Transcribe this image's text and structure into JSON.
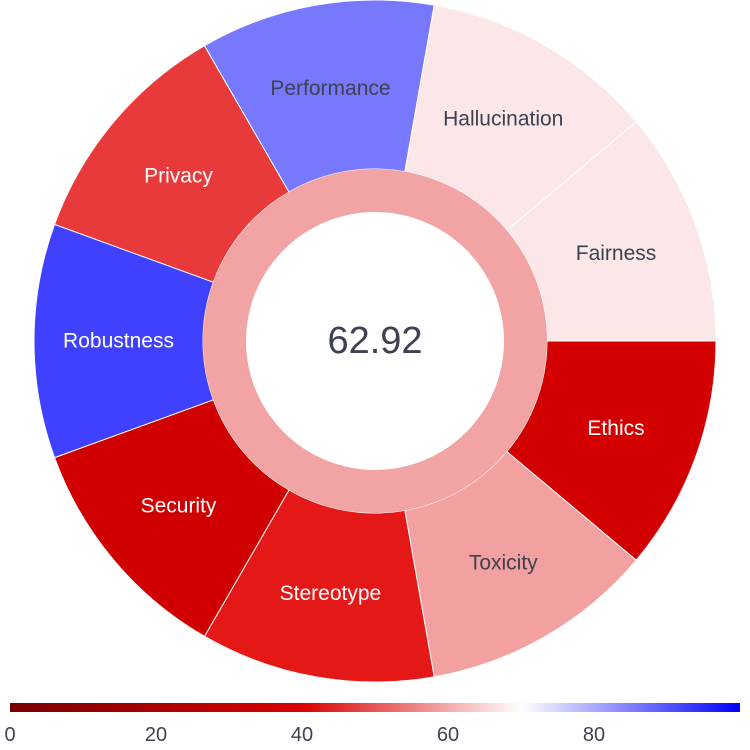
{
  "chart_data": {
    "type": "pie",
    "center_value": "62.92",
    "segments": [
      {
        "label": "Ethics",
        "value": 36,
        "color": "#d20000",
        "text_color": "#ffffff"
      },
      {
        "label": "Toxicity",
        "value": 63,
        "color": "#f2a0a0",
        "text_color": "#3d4152"
      },
      {
        "label": "Stereotype",
        "value": 42,
        "color": "#e51818",
        "text_color": "#ffffff"
      },
      {
        "label": "Security",
        "value": 35,
        "color": "#d00000",
        "text_color": "#ffffff"
      },
      {
        "label": "Robustness",
        "value": 96,
        "color": "#4040ff",
        "text_color": "#ffffff"
      },
      {
        "label": "Privacy",
        "value": 47,
        "color": "#e83a3a",
        "text_color": "#ffffff"
      },
      {
        "label": "Performance",
        "value": 88,
        "color": "#7878ff",
        "text_color": "#3d4152"
      },
      {
        "label": "Hallucination",
        "value": 70,
        "color": "#fbe7e7",
        "text_color": "#3d4152"
      },
      {
        "label": "Fairness",
        "value": 70,
        "color": "#fbe7e7",
        "text_color": "#3d4152"
      }
    ],
    "inner_ring_color": "#f2a3a3",
    "colorbar": {
      "range": [
        0,
        100
      ],
      "ticks": [
        "0",
        "20",
        "40",
        "60",
        "80"
      ],
      "stops": [
        {
          "value": 0,
          "color": "#780000"
        },
        {
          "value": 40,
          "color": "#dc0000"
        },
        {
          "value": 70,
          "color": "#ffffff"
        },
        {
          "value": 100,
          "color": "#0000ff"
        }
      ]
    }
  }
}
